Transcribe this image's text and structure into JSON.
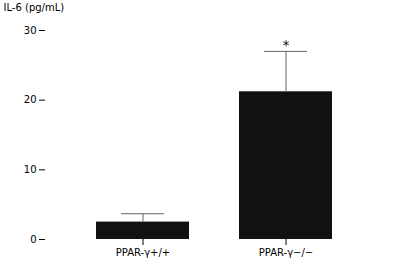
{
  "chart_data": {
    "type": "bar",
    "categories": [
      "PPAR-γ+/+",
      "PPAR-γ−/−"
    ],
    "values": [
      2.5,
      21.2
    ],
    "errors_upper": [
      1.2,
      5.8
    ],
    "color": "#111111",
    "ylabel": "IL-6 (pg/mL)",
    "ylim": [
      0,
      30
    ],
    "yticks": [
      0,
      10,
      20,
      30
    ],
    "grid": false,
    "annotations": [
      {
        "text": "*",
        "category": "PPAR-γ−/−",
        "y": 27.2
      }
    ]
  }
}
